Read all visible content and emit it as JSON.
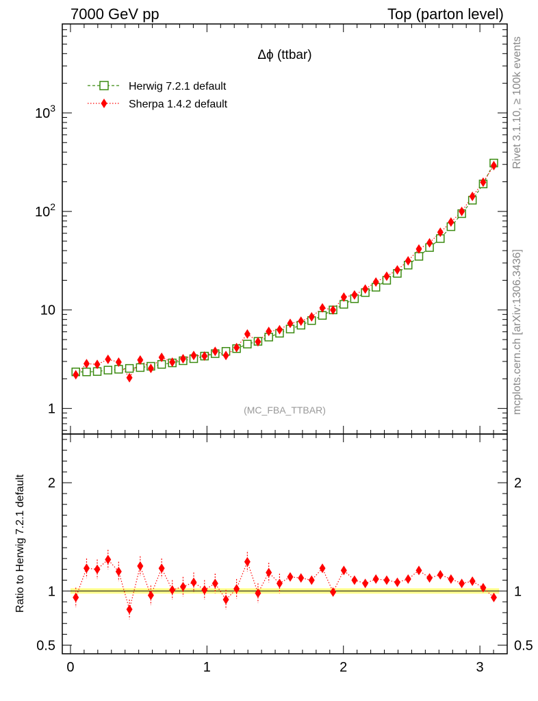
{
  "header": {
    "left": "7000 GeV pp",
    "right": "Top (parton level)"
  },
  "side_labels": {
    "rivet": "Rivet 3.1.10, ≥ 100k events",
    "mcplots": "mcplots.cern.ch [arXiv:1306.3436]"
  },
  "colors": {
    "herwig": "#3a8a10",
    "sherpa": "#ff0000",
    "band": "#ffff66"
  },
  "chart_data": [
    {
      "type": "line",
      "title": "Δϕ (ttbar)",
      "analysis": "(MC_FBA_TTBAR)",
      "yscale": "log",
      "xlim": [
        -0.06,
        3.2
      ],
      "ylim": [
        0.55,
        8000
      ],
      "yticks": [
        {
          "value": 1,
          "label": "1"
        },
        {
          "value": 10,
          "label": "10"
        },
        {
          "value": 100,
          "label": "10^2"
        },
        {
          "value": 1000,
          "label": "10^3"
        }
      ],
      "legend_position": "top-left",
      "x": [
        0.039,
        0.118,
        0.196,
        0.275,
        0.353,
        0.432,
        0.511,
        0.589,
        0.668,
        0.746,
        0.825,
        0.903,
        0.982,
        1.06,
        1.139,
        1.217,
        1.296,
        1.374,
        1.453,
        1.532,
        1.61,
        1.689,
        1.767,
        1.846,
        1.924,
        2.003,
        2.081,
        2.16,
        2.238,
        2.317,
        2.395,
        2.474,
        2.553,
        2.631,
        2.71,
        2.788,
        2.867,
        2.945,
        3.024,
        3.102
      ],
      "series": [
        {
          "name": "Herwig 7.2.1 default",
          "marker": "open-square",
          "style": "dashed",
          "values": [
            2.35,
            2.35,
            2.37,
            2.45,
            2.5,
            2.55,
            2.6,
            2.68,
            2.8,
            2.9,
            3.05,
            3.2,
            3.4,
            3.6,
            3.8,
            4.05,
            4.5,
            4.8,
            5.3,
            5.8,
            6.4,
            7.0,
            7.8,
            8.8,
            10.0,
            11.4,
            13.0,
            15.0,
            17.0,
            20.0,
            23.5,
            28.5,
            35.0,
            43.0,
            53.0,
            70.0,
            95.0,
            130.0,
            190.0,
            310.0
          ]
        },
        {
          "name": "Sherpa 1.4.2 default",
          "marker": "filled-diamond",
          "style": "dotted",
          "values": [
            2.2,
            2.85,
            2.8,
            3.15,
            2.95,
            2.05,
            3.1,
            2.55,
            3.3,
            2.95,
            3.2,
            3.45,
            3.4,
            3.8,
            3.45,
            4.15,
            5.7,
            4.75,
            6.05,
            6.3,
            7.3,
            7.7,
            8.5,
            10.5,
            10.0,
            13.5,
            14.2,
            16.3,
            19.2,
            22.0,
            25.5,
            31.5,
            41.5,
            48.0,
            61.5,
            78.0,
            100.0,
            142.0,
            198.0,
            292.0
          ]
        }
      ]
    },
    {
      "type": "line",
      "ylabel": "Ratio to Herwig 7.2.1 default",
      "xlim": [
        -0.06,
        3.2
      ],
      "ylim": [
        0.42,
        2.45
      ],
      "xticks": [
        0,
        1,
        2,
        3
      ],
      "yticks": [
        0.5,
        1,
        2
      ],
      "reference": 1.0,
      "series": [
        {
          "name": "Sherpa 1.4.2 default",
          "values": [
            0.94,
            1.21,
            1.2,
            1.29,
            1.18,
            0.83,
            1.23,
            0.96,
            1.21,
            1.01,
            1.04,
            1.08,
            1.01,
            1.07,
            0.92,
            1.02,
            1.27,
            0.98,
            1.17,
            1.07,
            1.13,
            1.12,
            1.1,
            1.21,
            0.99,
            1.19,
            1.1,
            1.07,
            1.11,
            1.1,
            1.08,
            1.11,
            1.19,
            1.12,
            1.15,
            1.11,
            1.07,
            1.09,
            1.03,
            0.94
          ]
        }
      ]
    }
  ]
}
